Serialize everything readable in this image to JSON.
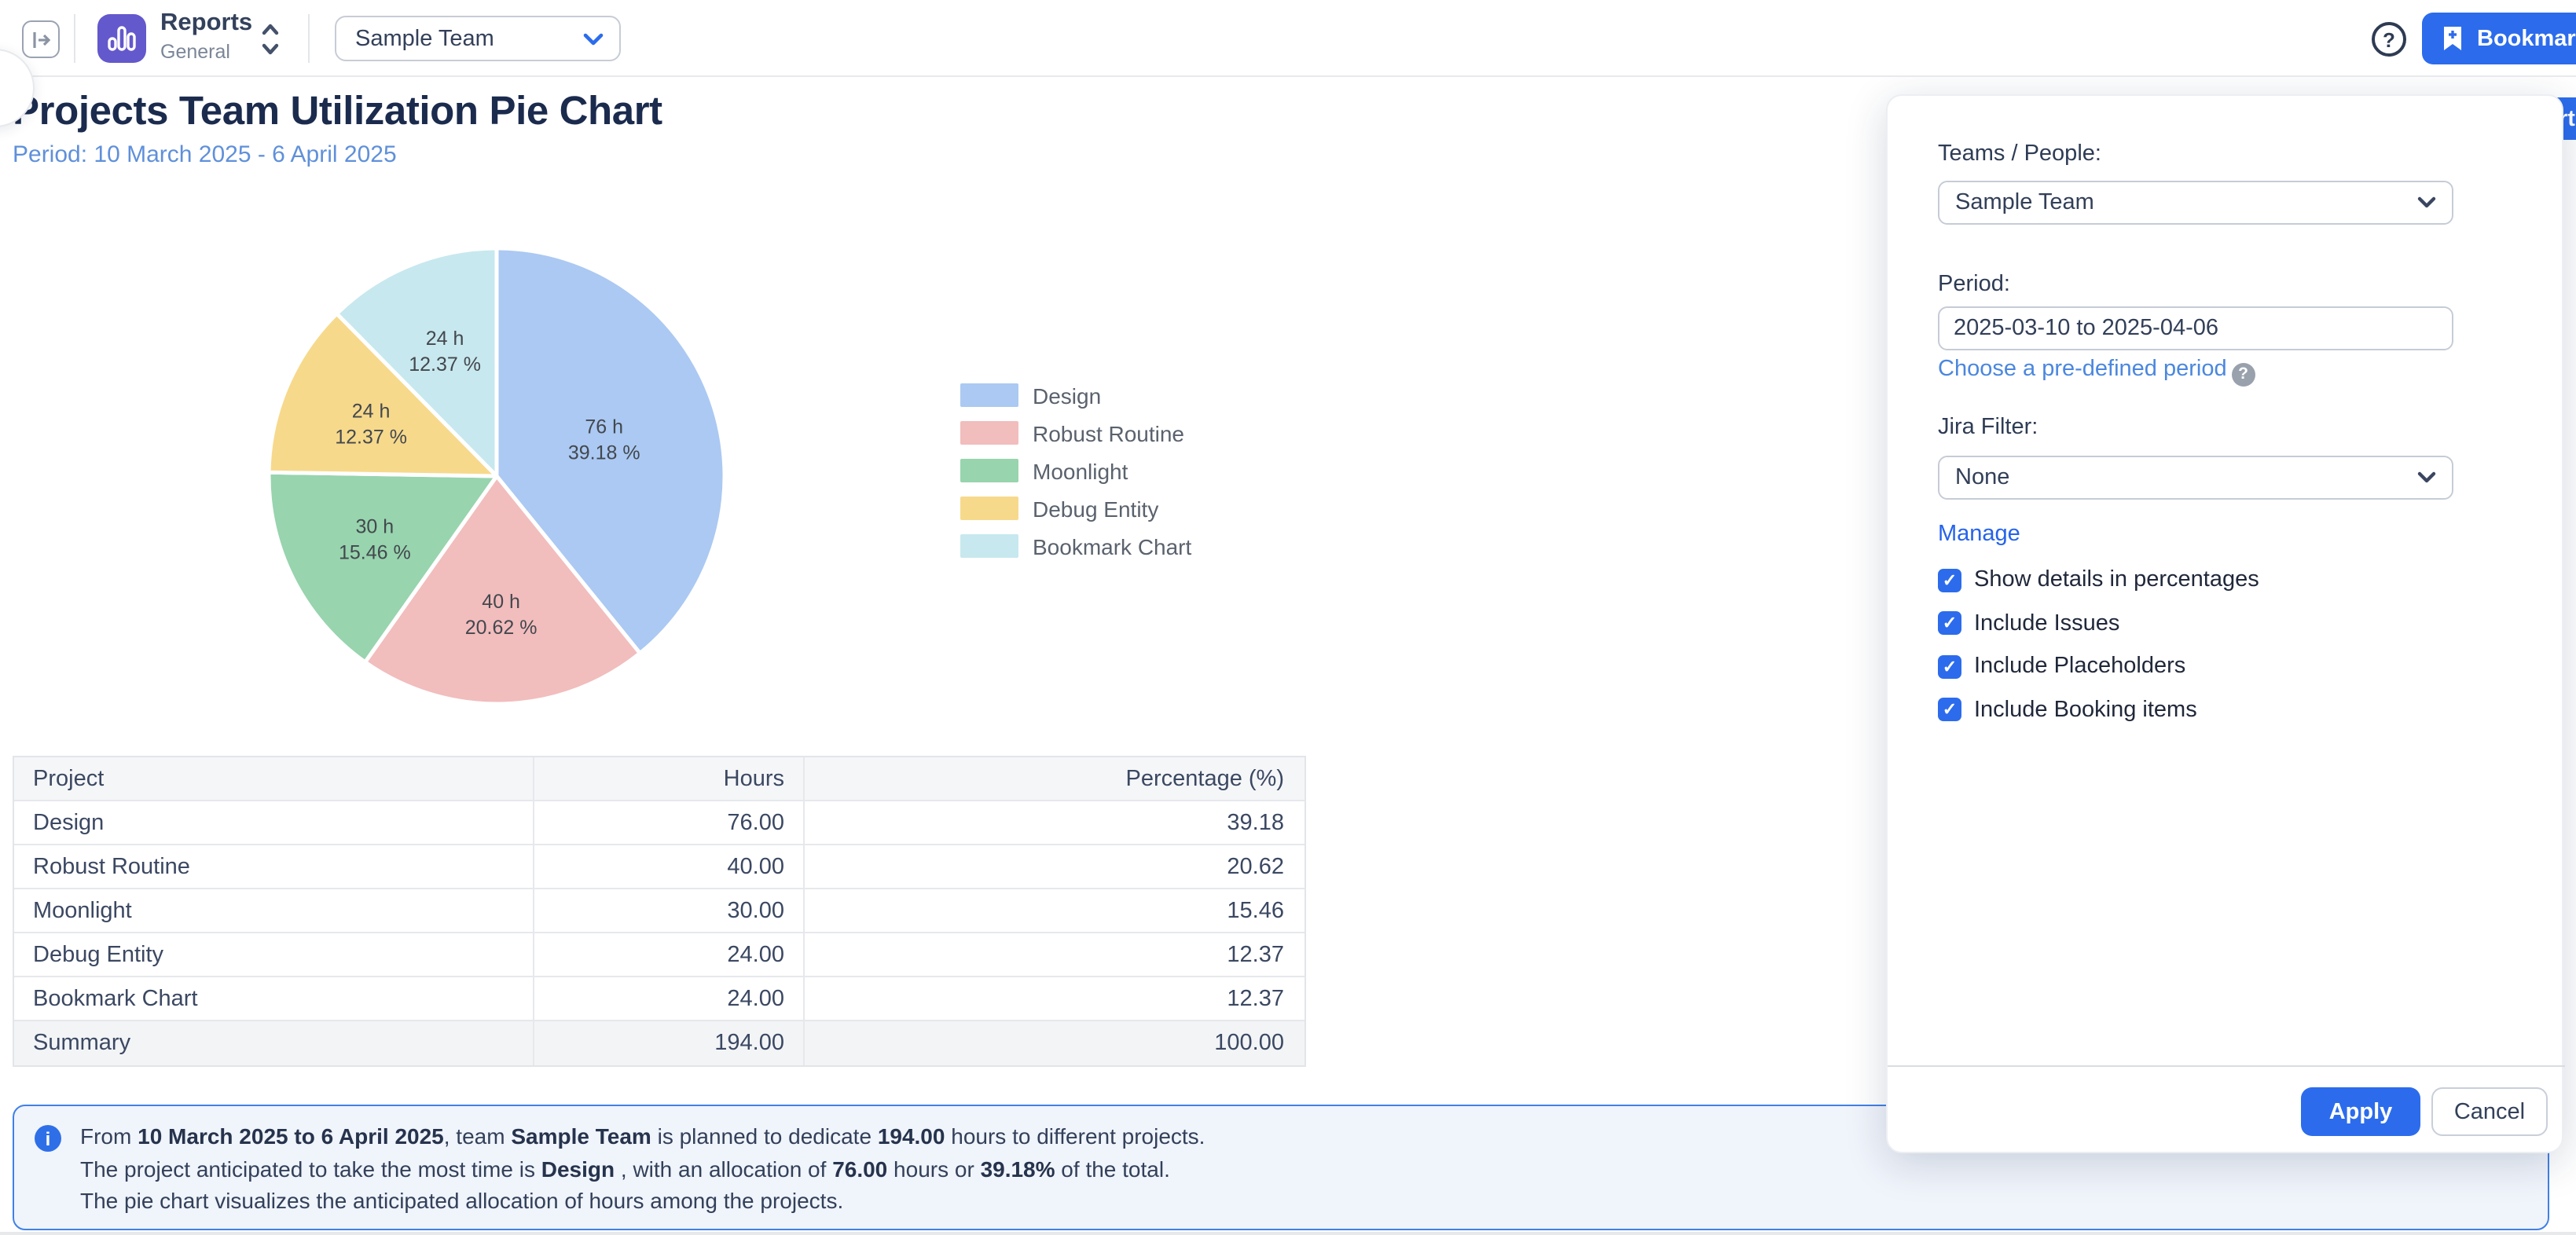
{
  "header": {
    "product_title": "Reports",
    "product_subtitle": "General",
    "team_selector_value": "Sample Team",
    "help_glyph": "?",
    "bookmark_label": "Bookmark",
    "accent_color": "#2c6cec"
  },
  "page": {
    "title": "Projects Team Utilization Pie Chart",
    "period_subtitle": "Period: 10 March 2025 - 6 April 2025"
  },
  "chart_data": {
    "type": "pie",
    "title": "Projects Team Utilization Pie Chart",
    "period": "10 March 2025 - 6 April 2025",
    "categories": [
      "Design",
      "Robust Routine",
      "Moonlight",
      "Debug Entity",
      "Bookmark Chart"
    ],
    "values_hours": [
      76,
      40,
      30,
      24,
      24
    ],
    "percentages": [
      39.18,
      20.62,
      15.46,
      12.37,
      12.37
    ],
    "percent_labels": [
      "39.18",
      "20.62",
      "15.46",
      "12.37",
      "12.37"
    ],
    "total_hours": 194,
    "colors": [
      "#abc9f2",
      "#f2bdbd",
      "#98d4ae",
      "#f7d98c",
      "#c7e8ee"
    ],
    "start_angle_deg": 0,
    "direction": "clockwise",
    "labels_inside": true,
    "legend_position": "right"
  },
  "table": {
    "columns": [
      "Project",
      "Hours",
      "Percentage (%)"
    ],
    "rows": [
      {
        "project": "Design",
        "hours": "76.00",
        "pct": "39.18"
      },
      {
        "project": "Robust Routine",
        "hours": "40.00",
        "pct": "20.62"
      },
      {
        "project": "Moonlight",
        "hours": "30.00",
        "pct": "15.46"
      },
      {
        "project": "Debug Entity",
        "hours": "24.00",
        "pct": "12.37"
      },
      {
        "project": "Bookmark Chart",
        "hours": "24.00",
        "pct": "12.37"
      }
    ],
    "summary": {
      "project": "Summary",
      "hours": "194.00",
      "pct": "100.00"
    }
  },
  "info_box": {
    "icon_glyph": "i",
    "lines": [
      [
        {
          "text": "From ",
          "bold": false
        },
        {
          "text": "10 March 2025 to 6 April 2025",
          "bold": true
        },
        {
          "text": ", team ",
          "bold": false
        },
        {
          "text": "Sample Team",
          "bold": true
        },
        {
          "text": " is planned to dedicate ",
          "bold": false
        },
        {
          "text": "194.00",
          "bold": true
        },
        {
          "text": " hours to different projects.",
          "bold": false
        }
      ],
      [
        {
          "text": "The project anticipated to take the most time is ",
          "bold": false
        },
        {
          "text": "Design",
          "bold": true
        },
        {
          "text": " , with an allocation of ",
          "bold": false
        },
        {
          "text": "76.00",
          "bold": true
        },
        {
          "text": " hours or ",
          "bold": false
        },
        {
          "text": "39.18%",
          "bold": true
        },
        {
          "text": " of the total.",
          "bold": false
        }
      ],
      [
        {
          "text": "The pie chart visualizes the anticipated allocation of hours among the projects.",
          "bold": false
        }
      ]
    ]
  },
  "panel": {
    "teams_label": "Teams / People:",
    "teams_value": "Sample Team",
    "period_label": "Period:",
    "period_value": "2025-03-10 to 2025-04-06",
    "predefined_period_link": "Choose a pre-defined period",
    "predefined_help_glyph": "?",
    "jira_filter_label": "Jira Filter:",
    "jira_filter_value": "None",
    "manage_link": "Manage",
    "checkboxes": [
      {
        "label": "Show details in percentages",
        "checked": true
      },
      {
        "label": "Include Issues",
        "checked": true
      },
      {
        "label": "Include Placeholders",
        "checked": true
      },
      {
        "label": "Include Booking items",
        "checked": true
      }
    ],
    "apply_label": "Apply",
    "cancel_label": "Cancel"
  },
  "overlay_fragment": {
    "text": "rt"
  }
}
